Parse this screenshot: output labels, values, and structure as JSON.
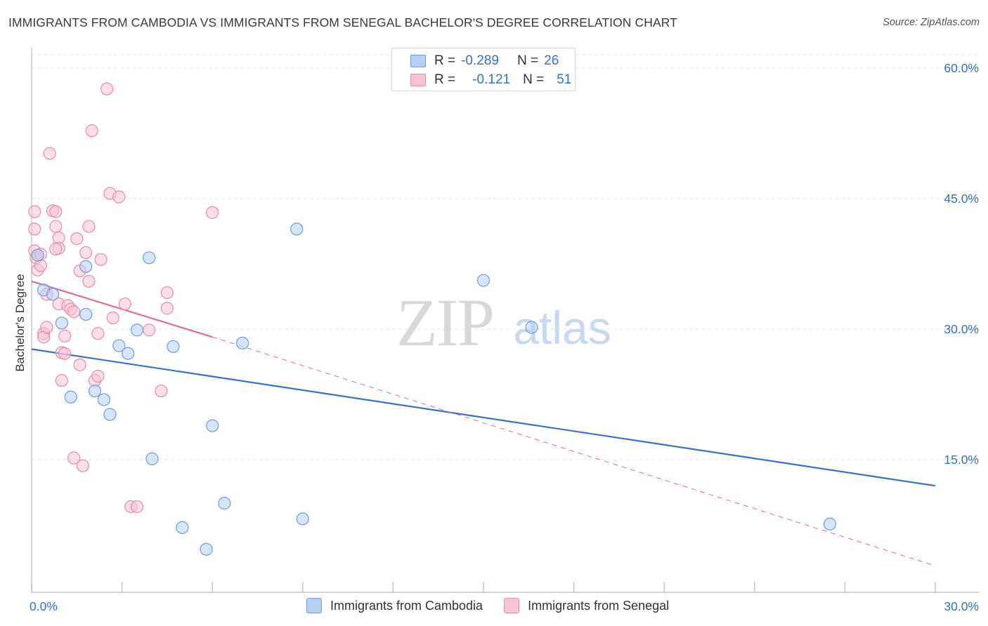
{
  "title": "IMMIGRANTS FROM CAMBODIA VS IMMIGRANTS FROM SENEGAL BACHELOR'S DEGREE CORRELATION CHART",
  "source": "Source: ZipAtlas.com",
  "watermark": {
    "zip": "ZIP",
    "atlas": "atlas"
  },
  "legend": {
    "rows": [
      {
        "r_label": "R =",
        "r_value": "-0.289",
        "n_label": "N =",
        "n_value": "26"
      },
      {
        "r_label": "R =",
        "r_value": "-0.121",
        "n_label": "N =",
        "n_value": "51"
      }
    ]
  },
  "colors": {
    "cambodia_fill": "#b7d0f5",
    "cambodia_stroke": "#6f9be0",
    "cambodia_line": "#3370d1",
    "senegal_fill": "#f8c4d4",
    "senegal_stroke": "#e98aaa",
    "senegal_line": "#e06a93",
    "grid": "#e3e3e3",
    "axis_label": "#3370c9"
  },
  "chart_data": {
    "type": "scatter",
    "title": "IMMIGRANTS FROM CAMBODIA VS IMMIGRANTS FROM SENEGAL BACHELOR'S DEGREE CORRELATION CHART",
    "xlabel": "",
    "ylabel": "Bachelor's Degree",
    "xlim": [
      0,
      30
    ],
    "ylim": [
      0,
      63
    ],
    "x_tick_labels": [
      "0.0%",
      "30.0%"
    ],
    "y_ticks": [
      15,
      30,
      45,
      60
    ],
    "y_tick_labels": [
      "15.0%",
      "30.0%",
      "45.0%",
      "60.0%"
    ],
    "grid": true,
    "series": [
      {
        "name": "Immigrants from Cambodia",
        "r": -0.289,
        "n": 26,
        "points": [
          [
            0.2,
            38.5
          ],
          [
            0.4,
            34.5
          ],
          [
            0.7,
            34.0
          ],
          [
            1.0,
            30.7
          ],
          [
            1.3,
            22.2
          ],
          [
            1.8,
            31.7
          ],
          [
            1.8,
            37.2
          ],
          [
            2.1,
            22.9
          ],
          [
            2.4,
            21.9
          ],
          [
            2.6,
            20.2
          ],
          [
            2.9,
            28.1
          ],
          [
            3.2,
            27.2
          ],
          [
            3.5,
            29.9
          ],
          [
            3.9,
            38.2
          ],
          [
            4.0,
            15.1
          ],
          [
            4.7,
            28.0
          ],
          [
            5.0,
            7.2
          ],
          [
            5.8,
            4.7
          ],
          [
            6.0,
            18.9
          ],
          [
            6.4,
            10.0
          ],
          [
            7.0,
            28.4
          ],
          [
            8.8,
            41.5
          ],
          [
            9.0,
            8.2
          ],
          [
            15.0,
            35.6
          ],
          [
            16.6,
            30.2
          ],
          [
            26.5,
            7.6
          ]
        ],
        "trend": {
          "x": [
            0,
            30
          ],
          "y": [
            27.7,
            12.0
          ],
          "style": "solid"
        }
      },
      {
        "name": "Immigrants from Senegal",
        "r": -0.121,
        "n": 51,
        "points": [
          [
            0.1,
            43.5
          ],
          [
            0.1,
            41.5
          ],
          [
            0.1,
            39.0
          ],
          [
            0.15,
            38.2
          ],
          [
            0.2,
            36.8
          ],
          [
            0.3,
            37.3
          ],
          [
            0.4,
            29.5
          ],
          [
            0.4,
            29.1
          ],
          [
            0.5,
            34.0
          ],
          [
            0.5,
            30.2
          ],
          [
            0.6,
            50.2
          ],
          [
            0.7,
            43.6
          ],
          [
            0.8,
            43.5
          ],
          [
            0.8,
            41.8
          ],
          [
            0.9,
            40.5
          ],
          [
            0.9,
            39.3
          ],
          [
            0.9,
            32.9
          ],
          [
            1.0,
            27.3
          ],
          [
            1.0,
            24.1
          ],
          [
            1.1,
            29.2
          ],
          [
            1.1,
            27.2
          ],
          [
            1.2,
            32.7
          ],
          [
            1.3,
            32.3
          ],
          [
            1.4,
            32.0
          ],
          [
            1.4,
            15.2
          ],
          [
            1.5,
            40.4
          ],
          [
            1.6,
            36.7
          ],
          [
            1.6,
            25.9
          ],
          [
            1.7,
            14.3
          ],
          [
            1.8,
            38.8
          ],
          [
            1.9,
            41.8
          ],
          [
            1.9,
            35.5
          ],
          [
            2.0,
            52.8
          ],
          [
            2.1,
            24.1
          ],
          [
            2.2,
            29.5
          ],
          [
            2.2,
            24.6
          ],
          [
            2.3,
            38.0
          ],
          [
            2.5,
            57.6
          ],
          [
            2.6,
            45.6
          ],
          [
            2.7,
            31.3
          ],
          [
            2.9,
            45.2
          ],
          [
            3.1,
            32.9
          ],
          [
            3.3,
            9.6
          ],
          [
            3.5,
            9.6
          ],
          [
            3.9,
            29.9
          ],
          [
            4.3,
            22.9
          ],
          [
            4.5,
            32.4
          ],
          [
            4.5,
            34.2
          ],
          [
            6.0,
            43.4
          ],
          [
            0.3,
            38.6
          ],
          [
            0.8,
            39.2
          ]
        ],
        "trend": {
          "x": [
            0,
            6.0
          ],
          "y": [
            35.5,
            29.1
          ],
          "style": "solid",
          "extension": {
            "x": [
              6.0,
              30
            ],
            "y": [
              29.1,
              2.8
            ],
            "style": "dashed"
          }
        }
      }
    ]
  }
}
